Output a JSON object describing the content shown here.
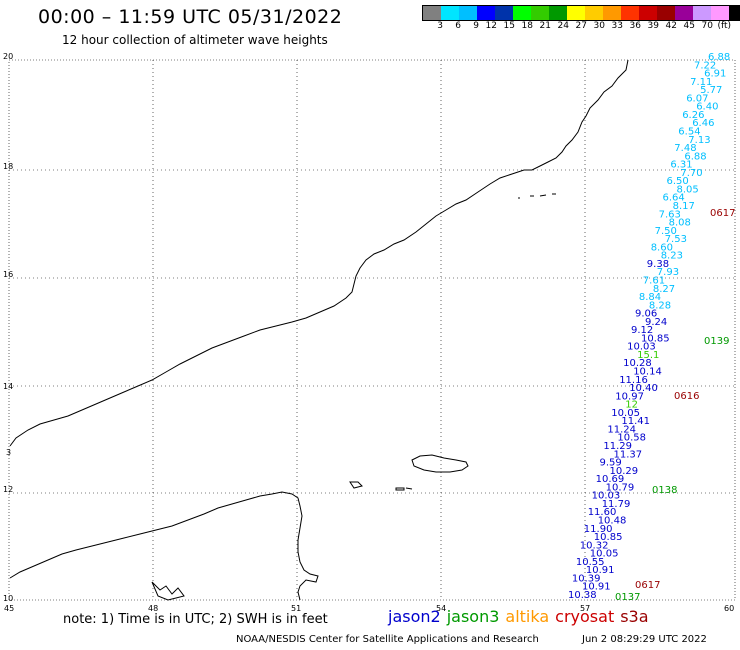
{
  "header": {
    "title": "00:00 – 11:59 UTC 05/31/2022",
    "subtitle": "12 hour collection of altimeter wave heights"
  },
  "colorbar": {
    "colors": [
      "#808080",
      "#00e5ff",
      "#00bfff",
      "#0000ff",
      "#0033aa",
      "#00ff00",
      "#33cc00",
      "#009900",
      "#ffff00",
      "#ffcc00",
      "#ff9900",
      "#ff3300",
      "#cc0000",
      "#990000",
      "#990099",
      "#cc99ff",
      "#ff99ff",
      "#000000"
    ],
    "labels": [
      "3",
      "6",
      "9",
      "12",
      "15",
      "18",
      "21",
      "24",
      "27",
      "30",
      "33",
      "36",
      "39",
      "42",
      "45",
      "70",
      "(ft)"
    ]
  },
  "axes": {
    "x_ticks": [
      "45",
      "48",
      "51",
      "54",
      "57",
      "60"
    ],
    "y_ticks": [
      "20",
      "18",
      "16",
      "14",
      "12",
      "10"
    ],
    "extra_tick": "3"
  },
  "observations": [
    {
      "t": "6.88",
      "c": "#00bfff"
    },
    {
      "t": "7.22",
      "c": "#00bfff"
    },
    {
      "t": "6.91",
      "c": "#00bfff"
    },
    {
      "t": "7.11",
      "c": "#00bfff"
    },
    {
      "t": "5.77",
      "c": "#00bfff"
    },
    {
      "t": "6.07",
      "c": "#00bfff"
    },
    {
      "t": "6.40",
      "c": "#00bfff"
    },
    {
      "t": "6.26",
      "c": "#00bfff"
    },
    {
      "t": "6.46",
      "c": "#00bfff"
    },
    {
      "t": "6.54",
      "c": "#00bfff"
    },
    {
      "t": "7.13",
      "c": "#00bfff"
    },
    {
      "t": "7.48",
      "c": "#00bfff"
    },
    {
      "t": "6.88",
      "c": "#00bfff"
    },
    {
      "t": "6.31",
      "c": "#00bfff"
    },
    {
      "t": "7.70",
      "c": "#00bfff"
    },
    {
      "t": "6.50",
      "c": "#00bfff"
    },
    {
      "t": "8.05",
      "c": "#00bfff"
    },
    {
      "t": "6.64",
      "c": "#00bfff"
    },
    {
      "t": "8.17",
      "c": "#00bfff"
    },
    {
      "t": "7.63",
      "c": "#00bfff"
    },
    {
      "t": "8.08",
      "c": "#00bfff"
    },
    {
      "t": "7.50",
      "c": "#00bfff"
    },
    {
      "t": "7.53",
      "c": "#00bfff"
    },
    {
      "t": "8.60",
      "c": "#00bfff"
    },
    {
      "t": "8.23",
      "c": "#00bfff"
    },
    {
      "t": "9.38",
      "c": "#0000cc"
    },
    {
      "t": "7.93",
      "c": "#00bfff"
    },
    {
      "t": "7.61",
      "c": "#00bfff"
    },
    {
      "t": "8.27",
      "c": "#00bfff"
    },
    {
      "t": "8.84",
      "c": "#00bfff"
    },
    {
      "t": "8.28",
      "c": "#00bfff"
    },
    {
      "t": "9.06",
      "c": "#0000cc"
    },
    {
      "t": "9.24",
      "c": "#0000cc"
    },
    {
      "t": "9.12",
      "c": "#0000cc"
    },
    {
      "t": "10.85",
      "c": "#0000cc"
    },
    {
      "t": "10.03",
      "c": "#0000cc"
    },
    {
      "t": "15.1",
      "c": "#33cc00"
    },
    {
      "t": "10.28",
      "c": "#0000cc"
    },
    {
      "t": "10.14",
      "c": "#0000cc"
    },
    {
      "t": "11.16",
      "c": "#0000cc"
    },
    {
      "t": "10.40",
      "c": "#0000cc"
    },
    {
      "t": "10.97",
      "c": "#0000cc"
    },
    {
      "t": "12",
      "c": "#33cc00"
    },
    {
      "t": "10.05",
      "c": "#0000cc"
    },
    {
      "t": "11.41",
      "c": "#0000cc"
    },
    {
      "t": "11.24",
      "c": "#0000cc"
    },
    {
      "t": "10.58",
      "c": "#0000cc"
    },
    {
      "t": "11.29",
      "c": "#0000cc"
    },
    {
      "t": "11.37",
      "c": "#0000cc"
    },
    {
      "t": "9.59",
      "c": "#0000cc"
    },
    {
      "t": "10.29",
      "c": "#0000cc"
    },
    {
      "t": "10.69",
      "c": "#0000cc"
    },
    {
      "t": "10.79",
      "c": "#0000cc"
    },
    {
      "t": "10.03",
      "c": "#0000cc"
    },
    {
      "t": "11.79",
      "c": "#0000cc"
    },
    {
      "t": "11.60",
      "c": "#0000cc"
    },
    {
      "t": "10.48",
      "c": "#0000cc"
    },
    {
      "t": "11.90",
      "c": "#0000cc"
    },
    {
      "t": "10.85",
      "c": "#0000cc"
    },
    {
      "t": "10.32",
      "c": "#0000cc"
    },
    {
      "t": "10.05",
      "c": "#0000cc"
    },
    {
      "t": "10.55",
      "c": "#0000cc"
    },
    {
      "t": "10.91",
      "c": "#0000cc"
    },
    {
      "t": "10.39",
      "c": "#0000cc"
    },
    {
      "t": "10.91",
      "c": "#0000cc"
    },
    {
      "t": "10.38",
      "c": "#0000cc"
    }
  ],
  "track_labels": [
    {
      "t": "0617",
      "c": "#990000"
    },
    {
      "t": "0139",
      "c": "#009900"
    },
    {
      "t": "0616",
      "c": "#990000"
    },
    {
      "t": "0138",
      "c": "#009900"
    },
    {
      "t": "0617",
      "c": "#990000"
    },
    {
      "t": "0137",
      "c": "#009900"
    }
  ],
  "footer": {
    "note": "note:  1) Time is in UTC;  2) SWH is in feet",
    "legend": [
      {
        "name": "jason2",
        "color": "#0000cc"
      },
      {
        "name": "jason3",
        "color": "#009900"
      },
      {
        "name": "altika",
        "color": "#ff9900"
      },
      {
        "name": "cryosat",
        "color": "#cc0000"
      },
      {
        "name": "s3a",
        "color": "#990000"
      }
    ],
    "credit": "NOAA/NESDIS Center for Satellite Applications and Research",
    "timestamp": "Jun  2 08:29:29 UTC 2022"
  }
}
